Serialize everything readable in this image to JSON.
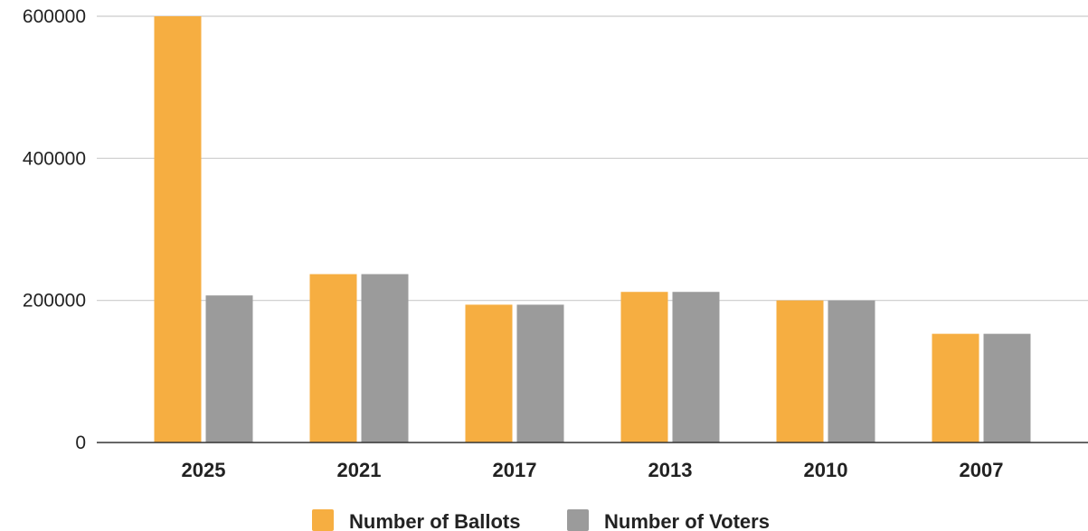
{
  "chart_data": {
    "type": "bar",
    "categories": [
      "2025",
      "2021",
      "2017",
      "2013",
      "2010",
      "2007"
    ],
    "series": [
      {
        "name": "Number of Ballots",
        "color": "#f6ae41",
        "values": [
          600000,
          237000,
          194000,
          212000,
          200000,
          153000
        ]
      },
      {
        "name": "Number of Voters",
        "color": "#9b9b9b",
        "values": [
          207000,
          237000,
          194000,
          212000,
          200000,
          153000
        ]
      }
    ],
    "title": "",
    "xlabel": "",
    "ylabel": "",
    "ylim": [
      0,
      600000
    ],
    "yticks": [
      "0",
      "200000",
      "400000",
      "600000"
    ],
    "grid": true,
    "legend_position": "bottom-center",
    "gridline_color": "#cccccc",
    "axis_color": "#333333"
  }
}
